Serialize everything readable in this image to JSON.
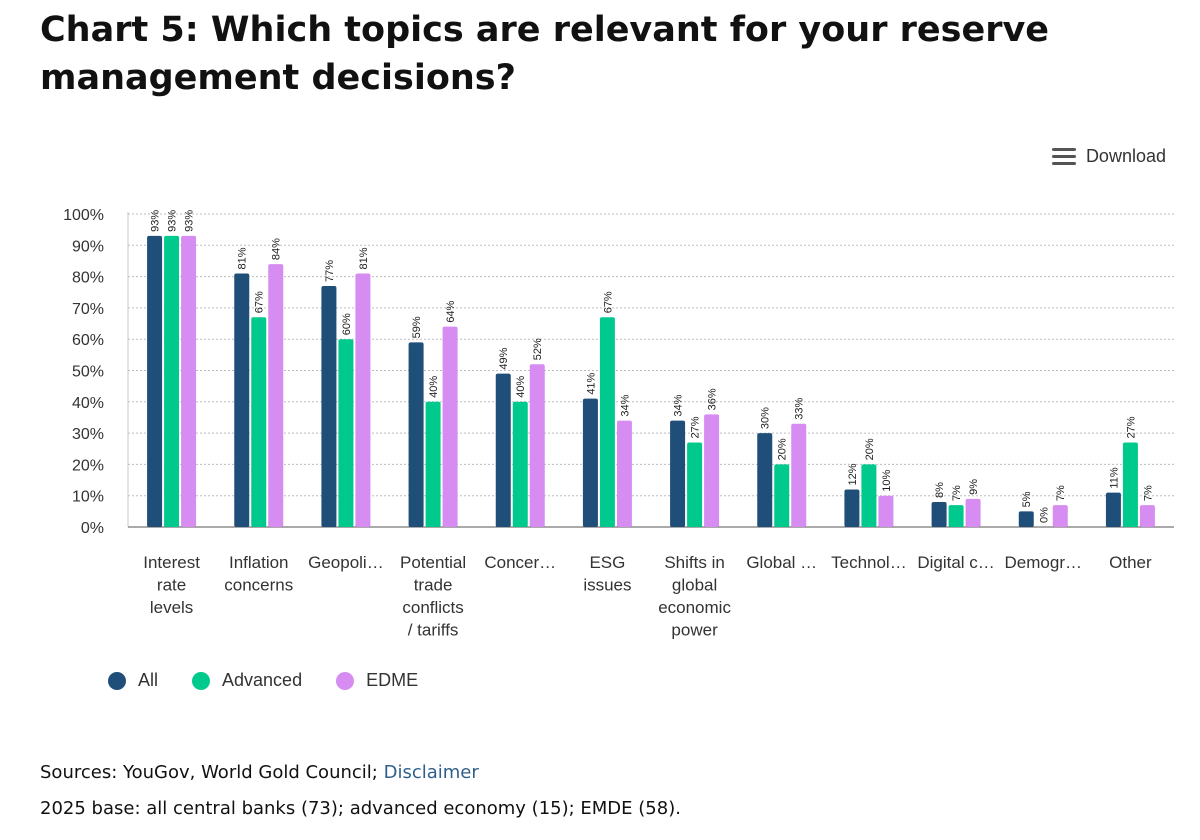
{
  "title": "Chart 5: Which topics are relevant for your reserve management decisions?",
  "download_label": "Download",
  "sources_text": "Sources: YouGov, World Gold Council;",
  "disclaimer_label": "Disclaimer",
  "base_note": "2025 base: all central banks (73); advanced economy (15); EMDE (58).",
  "colors": {
    "All": "#1f4e79",
    "Advanced": "#00c98d",
    "EDME": "#d68cf0"
  },
  "chart_data": {
    "type": "bar",
    "title": "Chart 5: Which topics are relevant for your reserve management decisions?",
    "categories": [
      [
        "Interest",
        "rate",
        "levels"
      ],
      [
        "Inflation",
        "concerns"
      ],
      [
        "Geopoli…"
      ],
      [
        "Potential",
        "trade",
        "conflicts",
        "/ tariffs"
      ],
      [
        "Concer…"
      ],
      [
        "ESG",
        "issues"
      ],
      [
        "Shifts in",
        "global",
        "economic",
        "power"
      ],
      [
        "Global …"
      ],
      [
        "Technol…"
      ],
      [
        "Digital c…"
      ],
      [
        "Demogr…"
      ],
      [
        "Other"
      ]
    ],
    "series": [
      {
        "name": "All",
        "values": [
          93,
          81,
          77,
          59,
          49,
          41,
          34,
          30,
          12,
          8,
          5,
          11
        ]
      },
      {
        "name": "Advanced",
        "values": [
          93,
          67,
          60,
          40,
          40,
          67,
          27,
          20,
          20,
          7,
          0,
          27
        ]
      },
      {
        "name": "EDME",
        "values": [
          93,
          84,
          81,
          64,
          52,
          34,
          36,
          33,
          10,
          9,
          7,
          7
        ]
      }
    ],
    "yticks": [
      "0%",
      "10%",
      "20%",
      "30%",
      "40%",
      "50%",
      "60%",
      "70%",
      "80%",
      "90%",
      "100%"
    ],
    "ylim": [
      0,
      100
    ],
    "value_suffix": "%",
    "grid": true,
    "legend": "bottom-left"
  }
}
